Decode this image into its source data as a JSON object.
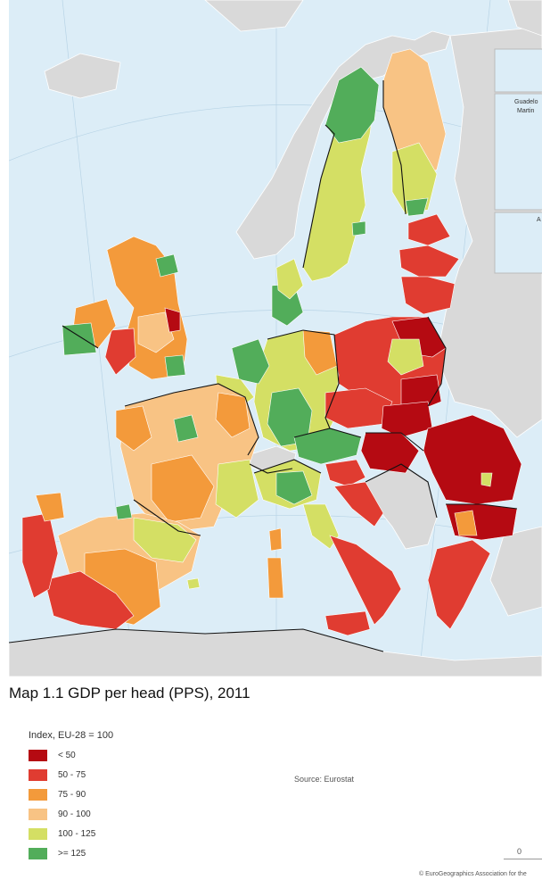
{
  "map": {
    "title": "Map 1.1 GDP per head (PPS), 2011",
    "inset_labels": [
      "Guadelo",
      "Martin",
      "A"
    ]
  },
  "legend": {
    "title": "Index, EU-28 = 100",
    "classes": [
      {
        "label": "< 50",
        "color": "#b50a12"
      },
      {
        "label": "50 - 75",
        "color": "#e03c31"
      },
      {
        "label": "75 - 90",
        "color": "#f39a3b"
      },
      {
        "label": "90 - 100",
        "color": "#f8c384"
      },
      {
        "label": "100 - 125",
        "color": "#d4df64"
      },
      {
        "label": ">= 125",
        "color": "#52ad5a"
      }
    ]
  },
  "source": "Source: Eurostat",
  "scale_bar_start": "0",
  "copyright": "© EuroGeographics Association for the"
}
